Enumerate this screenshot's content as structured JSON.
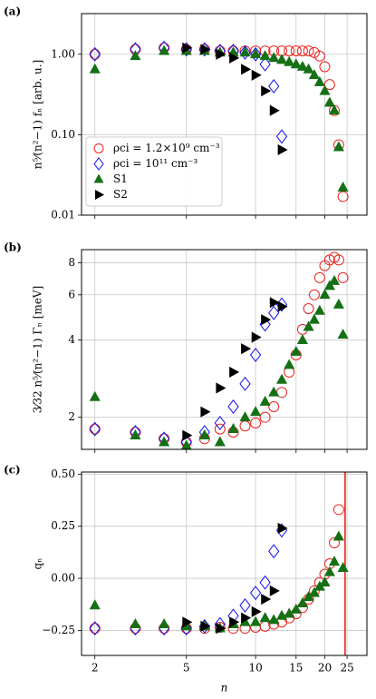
{
  "chart_data": [
    {
      "type": "scatter",
      "panel_label": "(a)",
      "ylabel": "n⁵⁄(n²−1) fₙ [arb. u.]",
      "xlog": true,
      "ylog": true,
      "grid": true,
      "xlim": [
        1.75,
        30.5
      ],
      "xticks": [
        2,
        5,
        10,
        15,
        20,
        25
      ],
      "xticklabels": false,
      "ylim": [
        0.01,
        3.2
      ],
      "yticks": [
        0.01,
        {
          "value": 0.1,
          "label": "0.10"
        },
        {
          "value": 1,
          "label": "1.00"
        }
      ],
      "legend": "lower left",
      "series": [
        {
          "name": "ρci = 1.2×10⁹ cm⁻³",
          "color": "#e8231e",
          "marker": "circle",
          "x": [
            2,
            3,
            4,
            5,
            6,
            7,
            8,
            9,
            10,
            11,
            12,
            13,
            14,
            15,
            16,
            17,
            18,
            19,
            20,
            21,
            22,
            23,
            24
          ],
          "values": [
            1.0,
            1.15,
            1.2,
            1.15,
            1.15,
            1.1,
            1.1,
            1.1,
            1.1,
            1.1,
            1.1,
            1.1,
            1.1,
            1.1,
            1.1,
            1.1,
            1.05,
            0.95,
            0.7,
            0.42,
            0.2,
            0.075,
            0.017
          ]
        },
        {
          "name": "ρci = 10¹¹ cm⁻³",
          "color": "#1010f0",
          "marker": "diamond",
          "x": [
            2,
            3,
            4,
            5,
            6,
            7,
            8,
            9,
            10,
            11,
            12,
            13
          ],
          "values": [
            1.0,
            1.15,
            1.2,
            1.15,
            1.15,
            1.1,
            1.1,
            1.05,
            1.0,
            0.75,
            0.4,
            0.095
          ]
        },
        {
          "name": "S1",
          "color": "#157015",
          "marker": "triangle-up",
          "x": [
            2,
            3,
            4,
            5,
            6,
            7,
            8,
            9,
            10,
            11,
            12,
            13,
            14,
            15,
            16,
            17,
            18,
            19,
            20,
            21,
            22,
            23,
            24
          ],
          "values": [
            0.65,
            0.95,
            1.1,
            1.1,
            1.1,
            1.05,
            1.05,
            1.05,
            1.0,
            0.95,
            0.9,
            0.85,
            0.8,
            0.75,
            0.7,
            0.65,
            0.55,
            0.45,
            0.35,
            0.25,
            0.2,
            0.07,
            0.022
          ]
        },
        {
          "name": "S2",
          "color": "#000000",
          "marker": "triangle-right",
          "x": [
            5,
            6,
            7,
            8,
            9,
            10,
            11,
            12,
            13
          ],
          "values": [
            1.2,
            1.15,
            1.0,
            0.9,
            0.65,
            0.55,
            0.35,
            0.2,
            0.065
          ]
        }
      ]
    },
    {
      "type": "scatter",
      "panel_label": "(b)",
      "ylabel": "3⁄32 n⁵⁄(n²−1) Γₙ [meV]",
      "xlog": true,
      "ylog": true,
      "grid": true,
      "xlim": [
        1.75,
        30.5
      ],
      "xticks": [
        2,
        5,
        10,
        15,
        20,
        25
      ],
      "xticklabels": false,
      "ylim": [
        1.5,
        9.0
      ],
      "yticks": [
        2,
        4,
        6,
        8
      ],
      "series": [
        {
          "color": "#e8231e",
          "marker": "circle",
          "x": [
            2,
            3,
            4,
            5,
            6,
            7,
            8,
            9,
            10,
            11,
            12,
            13,
            14,
            15,
            16,
            17,
            18,
            19,
            20,
            21,
            22,
            23,
            24
          ],
          "values": [
            1.8,
            1.75,
            1.65,
            1.6,
            1.65,
            1.8,
            1.75,
            1.85,
            1.9,
            2.0,
            2.2,
            2.5,
            3.0,
            3.5,
            4.4,
            5.3,
            6.0,
            7.0,
            7.8,
            8.2,
            8.4,
            8.2,
            7.0
          ]
        },
        {
          "color": "#1010f0",
          "marker": "diamond",
          "x": [
            2,
            3,
            4,
            5,
            6,
            7,
            8,
            9,
            10,
            11,
            12,
            13
          ],
          "values": [
            1.8,
            1.75,
            1.65,
            1.6,
            1.75,
            1.9,
            2.2,
            2.7,
            3.5,
            4.6,
            5.1,
            5.5
          ]
        },
        {
          "color": "#157015",
          "marker": "triangle-up",
          "x": [
            2,
            3,
            4,
            5,
            6,
            7,
            8,
            9,
            10,
            11,
            12,
            13,
            14,
            15,
            16,
            17,
            18,
            19,
            20,
            21,
            22,
            23,
            24
          ],
          "values": [
            2.4,
            1.7,
            1.6,
            1.55,
            1.7,
            1.6,
            1.8,
            2.0,
            2.1,
            2.3,
            2.5,
            2.8,
            3.2,
            3.6,
            4.0,
            4.5,
            4.8,
            5.2,
            6.0,
            6.5,
            6.8,
            5.5,
            4.2
          ]
        },
        {
          "color": "#000000",
          "marker": "triangle-right",
          "x": [
            5,
            6,
            7,
            8,
            9,
            10,
            11,
            12,
            13
          ],
          "values": [
            1.7,
            2.1,
            2.6,
            3.0,
            3.7,
            4.1,
            4.8,
            5.6,
            5.4
          ]
        }
      ]
    },
    {
      "type": "scatter",
      "panel_label": "(c)",
      "ylabel": "qₙ",
      "xlabel": "n",
      "xlog": true,
      "ylog": false,
      "grid": true,
      "xlim": [
        1.75,
        30.5
      ],
      "xticks": [
        2,
        5,
        10,
        15,
        20,
        25
      ],
      "xticklabels": true,
      "ylim": [
        -0.37,
        0.51
      ],
      "yticks": [
        {
          "value": -0.25,
          "label": "−0.25"
        },
        {
          "value": 0,
          "label": "0.00"
        },
        0.25,
        {
          "value": 0.5,
          "label": "0.50"
        }
      ],
      "vline": {
        "x": 24.5,
        "color": "#e8231e"
      },
      "series": [
        {
          "color": "#e8231e",
          "marker": "circle",
          "x": [
            2,
            3,
            4,
            5,
            6,
            7,
            8,
            9,
            10,
            11,
            12,
            13,
            14,
            15,
            16,
            17,
            18,
            19,
            20,
            21,
            22,
            23
          ],
          "values": [
            -0.24,
            -0.24,
            -0.24,
            -0.24,
            -0.24,
            -0.235,
            -0.24,
            -0.24,
            -0.235,
            -0.23,
            -0.22,
            -0.21,
            -0.19,
            -0.17,
            -0.14,
            -0.1,
            -0.06,
            -0.02,
            0.02,
            0.07,
            0.17,
            0.33
          ]
        },
        {
          "color": "#1010f0",
          "marker": "diamond",
          "x": [
            2,
            3,
            4,
            5,
            6,
            7,
            8,
            9,
            10,
            11,
            12,
            13
          ],
          "values": [
            -0.24,
            -0.24,
            -0.24,
            -0.24,
            -0.23,
            -0.22,
            -0.18,
            -0.13,
            -0.07,
            -0.02,
            0.13,
            0.23
          ]
        },
        {
          "color": "#157015",
          "marker": "triangle-up",
          "x": [
            2,
            3,
            4,
            5,
            6,
            7,
            8,
            9,
            10,
            11,
            12,
            13,
            14,
            15,
            16,
            17,
            18,
            19,
            20,
            21,
            22,
            23,
            24
          ],
          "values": [
            -0.13,
            -0.22,
            -0.22,
            -0.23,
            -0.23,
            -0.24,
            -0.22,
            -0.21,
            -0.21,
            -0.19,
            -0.2,
            -0.18,
            -0.17,
            -0.15,
            -0.12,
            -0.09,
            -0.07,
            -0.04,
            -0.02,
            0.03,
            0.08,
            0.2,
            0.05
          ]
        },
        {
          "color": "#000000",
          "marker": "triangle-right",
          "x": [
            5,
            6,
            7,
            8,
            9,
            10,
            11,
            12,
            13
          ],
          "values": [
            -0.21,
            -0.23,
            -0.24,
            -0.21,
            -0.19,
            -0.16,
            -0.1,
            -0.06,
            0.24
          ]
        }
      ]
    }
  ]
}
